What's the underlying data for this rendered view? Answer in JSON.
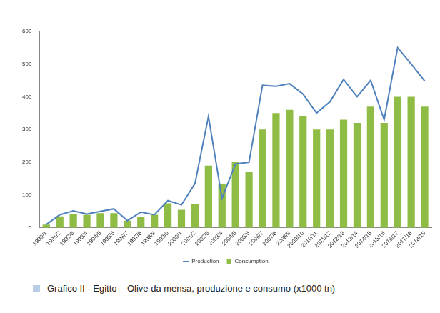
{
  "chart_data": {
    "type": "bar",
    "caption": "Grafico II - Egitto – Olive da mensa, produzione e consumo (x1000 tn)",
    "categories": [
      "1990/1",
      "1991/2",
      "1992/3",
      "1993/4",
      "1994/5",
      "1995/6",
      "1996/7",
      "1997/8",
      "1998/9",
      "1999/0",
      "2000/1",
      "2001/2",
      "2002/3",
      "2003/4",
      "2004/5",
      "2005/6",
      "2006/7",
      "2007/8",
      "2008/9",
      "2009/10",
      "2010/11",
      "2011/12",
      "2012/13",
      "2013/14",
      "2014/15",
      "2015/16",
      "2016/17",
      "2017/18",
      "2018/19"
    ],
    "series": [
      {
        "name": "Consumption",
        "type": "bar",
        "color": "#8fbc45",
        "values": [
          10,
          35,
          42,
          40,
          45,
          45,
          22,
          32,
          40,
          75,
          55,
          72,
          190,
          135,
          200,
          170,
          300,
          350,
          360,
          340,
          300,
          300,
          330,
          320,
          370,
          320,
          400,
          400,
          370
        ]
      },
      {
        "name": "Production",
        "type": "line",
        "color": "#4f81bd",
        "line_style": "solid",
        "values": [
          10,
          40,
          52,
          42,
          50,
          58,
          22,
          48,
          40,
          83,
          70,
          135,
          340,
          90,
          195,
          200,
          435,
          432,
          440,
          408,
          350,
          385,
          453,
          400,
          450,
          330,
          550,
          500,
          448
        ]
      }
    ],
    "ylim": [
      0,
      600
    ],
    "yticks": [
      0,
      100,
      200,
      300,
      400,
      500,
      600
    ],
    "grid": false,
    "legend": "bottom"
  }
}
